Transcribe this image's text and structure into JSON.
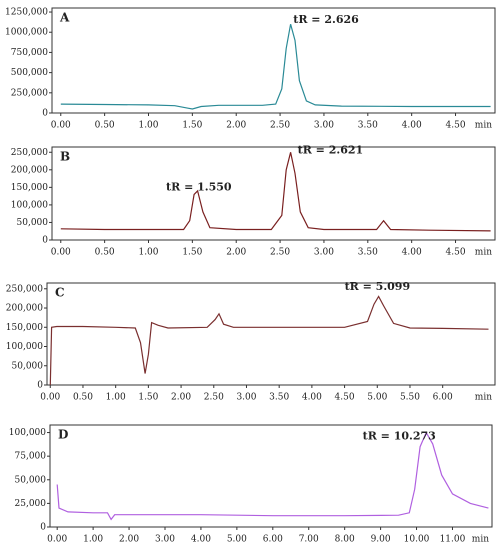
{
  "chart_data": [
    {
      "type": "line",
      "title": "A",
      "annotation": "tR = 2.626",
      "x_label": "min",
      "xlim": [
        -0.1,
        4.95
      ],
      "ylim": [
        0,
        1300000
      ],
      "xticks": [
        {
          "value": 0,
          "label": "0.00"
        },
        {
          "value": 0.5,
          "label": "0.50"
        },
        {
          "value": 1,
          "label": "1.00"
        },
        {
          "value": 1.5,
          "label": "1.50"
        },
        {
          "value": 2,
          "label": "2.00"
        },
        {
          "value": 2.5,
          "label": "2.50"
        },
        {
          "value": 3,
          "label": "3.00"
        },
        {
          "value": 3.5,
          "label": "3.50"
        },
        {
          "value": 4,
          "label": "4.00"
        },
        {
          "value": 4.5,
          "label": "4.50"
        }
      ],
      "yticks": [
        0,
        {
          "value": 250000,
          "label": "250,000"
        },
        {
          "value": 500000,
          "label": "500,000"
        },
        {
          "value": 750000,
          "label": "750,000"
        },
        {
          "value": 1000000,
          "label": "1000,000"
        },
        {
          "value": 1250000,
          "label": "1250,000"
        }
      ],
      "x": [
        0,
        0.5,
        1.0,
        1.3,
        1.45,
        1.5,
        1.6,
        1.8,
        2.0,
        2.3,
        2.45,
        2.52,
        2.57,
        2.62,
        2.67,
        2.72,
        2.8,
        2.9,
        3.2,
        4.0,
        4.9
      ],
      "series": [
        {
          "color": "#2a8a96",
          "values": [
            110000,
            105000,
            100000,
            90000,
            60000,
            50000,
            80000,
            95000,
            95000,
            95000,
            110000,
            300000,
            800000,
            1100000,
            900000,
            400000,
            150000,
            100000,
            85000,
            80000,
            80000
          ]
        }
      ]
    },
    {
      "type": "line",
      "title": "B",
      "annotations": [
        "tR = 1.550",
        "tR = 2.621"
      ],
      "x_label": "min",
      "xlim": [
        -0.1,
        4.95
      ],
      "ylim": [
        0,
        265000
      ],
      "xticks": [
        {
          "value": 0,
          "label": "0.00"
        },
        {
          "value": 0.5,
          "label": "0.50"
        },
        {
          "value": 1,
          "label": "1.00"
        },
        {
          "value": 1.5,
          "label": "1.50"
        },
        {
          "value": 2,
          "label": "2.00"
        },
        {
          "value": 2.5,
          "label": "2.50"
        },
        {
          "value": 3,
          "label": "3.00"
        },
        {
          "value": 3.5,
          "label": "3.50"
        },
        {
          "value": 4,
          "label": "4.00"
        },
        {
          "value": 4.5,
          "label": "4.50"
        }
      ],
      "yticks": [
        0,
        {
          "value": 50000,
          "label": "50,000"
        },
        {
          "value": 100000,
          "label": "100,000"
        },
        {
          "value": 150000,
          "label": "150,000"
        },
        {
          "value": 200000,
          "label": "200,000"
        },
        {
          "value": 250000,
          "label": "250,000"
        }
      ],
      "x": [
        0,
        0.5,
        1.0,
        1.4,
        1.47,
        1.52,
        1.56,
        1.62,
        1.7,
        2.0,
        2.4,
        2.52,
        2.57,
        2.62,
        2.67,
        2.73,
        2.82,
        3.0,
        3.6,
        3.68,
        3.76,
        4.2,
        4.9
      ],
      "series": [
        {
          "color": "#7a2020",
          "values": [
            32000,
            30000,
            30000,
            30000,
            55000,
            130000,
            140000,
            80000,
            35000,
            30000,
            30000,
            70000,
            200000,
            250000,
            190000,
            80000,
            35000,
            30000,
            30000,
            55000,
            30000,
            28000,
            26000
          ]
        }
      ]
    },
    {
      "type": "line",
      "title": "C",
      "annotation": "tR = 5.099",
      "x_label": "min",
      "xlim": [
        -0.05,
        6.8
      ],
      "ylim": [
        0,
        265000
      ],
      "xticks": [
        {
          "value": 0,
          "label": "0.00"
        },
        {
          "value": 0.5,
          "label": "0.50"
        },
        {
          "value": 1,
          "label": "1.00"
        },
        {
          "value": 1.5,
          "label": "1.50"
        },
        {
          "value": 2,
          "label": "2.00"
        },
        {
          "value": 2.5,
          "label": "2.50"
        },
        {
          "value": 3,
          "label": "3.00"
        },
        {
          "value": 3.5,
          "label": "3.50"
        },
        {
          "value": 4,
          "label": "4.00"
        },
        {
          "value": 4.5,
          "label": "4.50"
        },
        {
          "value": 5,
          "label": "5.00"
        },
        {
          "value": 5.5,
          "label": "5.50"
        },
        {
          "value": 6,
          "label": "6.00"
        }
      ],
      "yticks": [
        0,
        {
          "value": 50000,
          "label": "50,000"
        },
        {
          "value": 100000,
          "label": "100,000"
        },
        {
          "value": 150000,
          "label": "150,000"
        },
        {
          "value": 200000,
          "label": "200,000"
        },
        {
          "value": 250000,
          "label": "250,000"
        }
      ],
      "x": [
        0,
        0.02,
        0.1,
        0.5,
        1.0,
        1.3,
        1.38,
        1.45,
        1.5,
        1.55,
        1.65,
        1.8,
        2.4,
        2.52,
        2.58,
        2.65,
        2.8,
        3.5,
        4.5,
        4.85,
        4.95,
        5.02,
        5.1,
        5.25,
        5.5,
        6.0,
        6.7
      ],
      "series": [
        {
          "color": "#7a2f2f",
          "values": [
            0,
            150000,
            152000,
            152000,
            150000,
            148000,
            110000,
            30000,
            80000,
            162000,
            155000,
            148000,
            150000,
            170000,
            185000,
            158000,
            150000,
            150000,
            150000,
            165000,
            210000,
            230000,
            205000,
            160000,
            148000,
            147000,
            145000
          ]
        }
      ]
    },
    {
      "type": "line",
      "title": "D",
      "annotation": "tR = 10.273",
      "x_label": "min",
      "xlim": [
        -0.2,
        12.1
      ],
      "ylim": [
        0,
        108000
      ],
      "xticks": [
        {
          "value": 0,
          "label": "0.00"
        },
        {
          "value": 1,
          "label": "1.00"
        },
        {
          "value": 2,
          "label": "2.00"
        },
        {
          "value": 3,
          "label": "3.00"
        },
        {
          "value": 4,
          "label": "4.00"
        },
        {
          "value": 5,
          "label": "5.00"
        },
        {
          "value": 6,
          "label": "6.00"
        },
        {
          "value": 7,
          "label": "7.00"
        },
        {
          "value": 8,
          "label": "8.00"
        },
        {
          "value": 9,
          "label": "9.00"
        },
        {
          "value": 10,
          "label": "10.00"
        },
        {
          "value": 11,
          "label": "11.00"
        }
      ],
      "yticks": [
        0,
        {
          "value": 25000,
          "label": "25,000"
        },
        {
          "value": 50000,
          "label": "50,000"
        },
        {
          "value": 75000,
          "label": "75,000"
        },
        {
          "value": 100000,
          "label": "100,000"
        }
      ],
      "x": [
        0,
        0.05,
        0.3,
        1.0,
        1.4,
        1.5,
        1.6,
        2.5,
        4.0,
        6.0,
        8.0,
        9.5,
        9.8,
        9.95,
        10.1,
        10.27,
        10.45,
        10.7,
        11.0,
        11.5,
        12.0
      ],
      "series": [
        {
          "color": "#b060e0",
          "values": [
            45000,
            20000,
            16000,
            15000,
            15000,
            8000,
            13000,
            13000,
            13000,
            12000,
            12000,
            12500,
            15000,
            40000,
            85000,
            100000,
            88000,
            55000,
            35000,
            25000,
            20000
          ]
        }
      ]
    }
  ]
}
